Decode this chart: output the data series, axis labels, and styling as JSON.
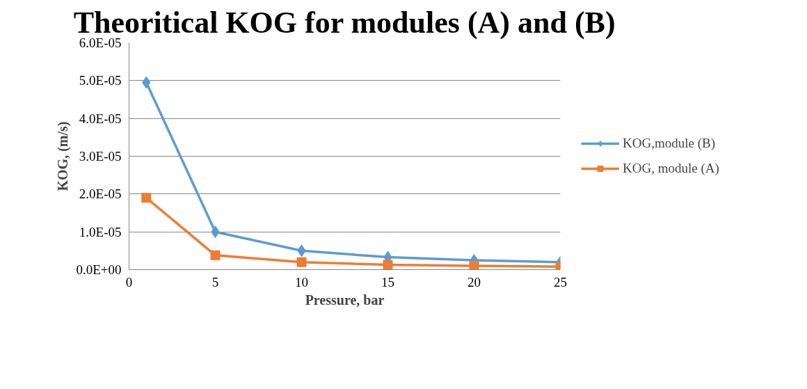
{
  "chart_data": {
    "type": "line",
    "title": "Theoritical KOG for modules (A) and (B)",
    "xlabel": "Pressure, bar",
    "ylabel": "KOG, (m/s)",
    "x": [
      1,
      5,
      10,
      15,
      20,
      25
    ],
    "series": [
      {
        "name": "KOG,module (B)",
        "color": "#5b9bd5",
        "marker": "diamond",
        "values": [
          4.95e-05,
          1e-05,
          5e-06,
          3.3e-06,
          2.5e-06,
          2e-06
        ]
      },
      {
        "name": "KOG, module (A)",
        "color": "#ed7d31",
        "marker": "square",
        "values": [
          1.9e-05,
          3.8e-06,
          2e-06,
          1.3e-06,
          1e-06,
          8e-07
        ]
      }
    ],
    "xlim": [
      0,
      25
    ],
    "xticks": [
      0,
      5,
      10,
      15,
      20,
      25
    ],
    "ylim": [
      0,
      6e-05
    ],
    "yticks": [
      {
        "value": 0,
        "label": "0.0E+00"
      },
      {
        "value": 1e-05,
        "label": "1.0E-05"
      },
      {
        "value": 2e-05,
        "label": "2.0E-05"
      },
      {
        "value": 3e-05,
        "label": "3.0E-05"
      },
      {
        "value": 4e-05,
        "label": "4.0E-05"
      },
      {
        "value": 5e-05,
        "label": "5.0E-05"
      },
      {
        "value": 6e-05,
        "label": "6.0E-05"
      }
    ],
    "grid": "y",
    "legend": "right",
    "line_style": "solid"
  }
}
